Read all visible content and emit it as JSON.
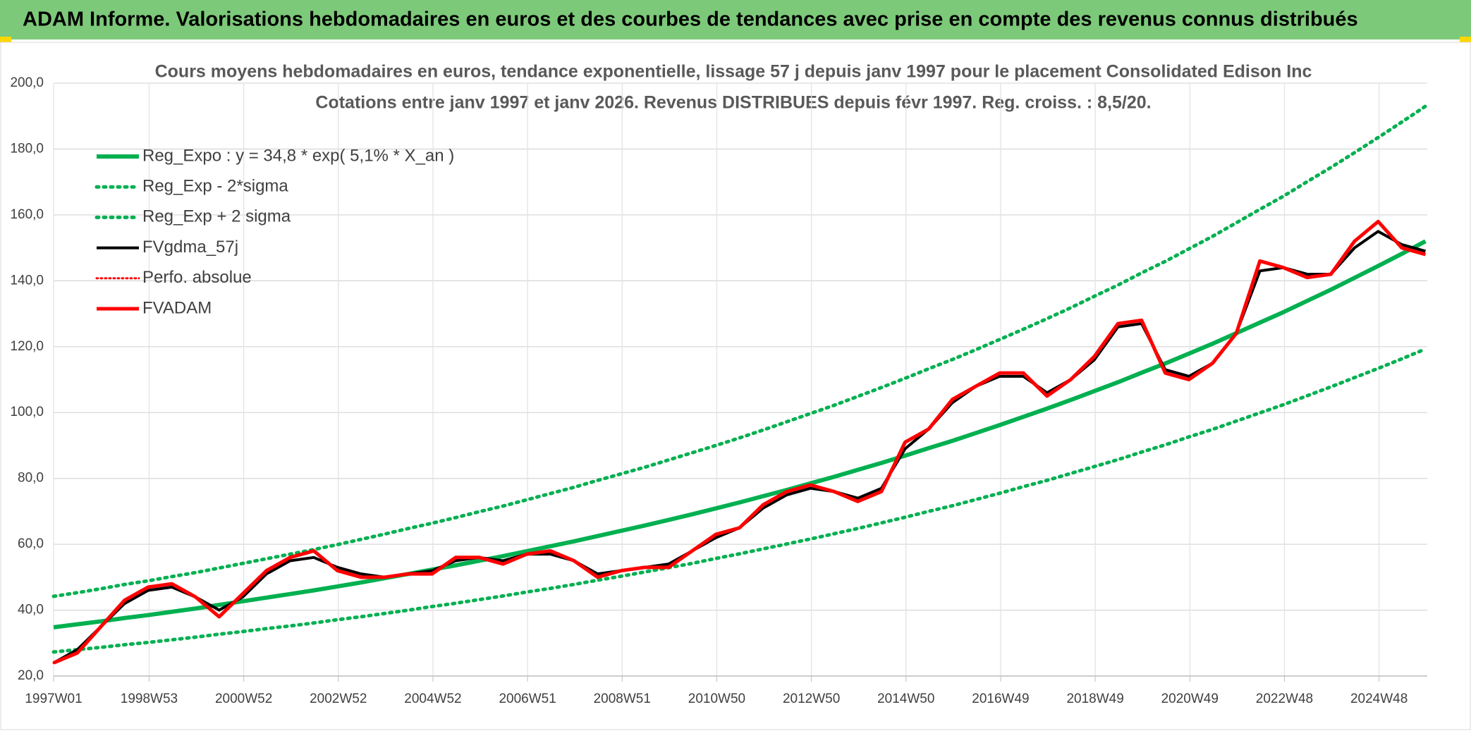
{
  "header": {
    "title": "ADAM Informe. Valorisations hebdomadaires en euros et des courbes de tendances avec prise en compte des revenus connus distribués"
  },
  "chart_data": {
    "type": "line",
    "title": "Cours moyens hebdomadaires en euros, tendance exponentielle, lissage 57 j depuis janv 1997 pour le placement Consolidated Edison Inc",
    "subtitle": "Cotations entre janv 1997 et janv 2026. Revenus DISTRIBUES depuis févr 1997. Reg. croiss. : 8,5/20.",
    "grid": true,
    "legend": "top-left",
    "xlim": [
      0,
      1510
    ],
    "xticks": [
      {
        "value": 0,
        "label": "1997W01"
      },
      {
        "value": 105,
        "label": "1998W53"
      },
      {
        "value": 209,
        "label": "2000W52"
      },
      {
        "value": 313,
        "label": "2002W52"
      },
      {
        "value": 417,
        "label": "2004W52"
      },
      {
        "value": 521,
        "label": "2006W51"
      },
      {
        "value": 625,
        "label": "2008W51"
      },
      {
        "value": 729,
        "label": "2010W50"
      },
      {
        "value": 833,
        "label": "2012W50"
      },
      {
        "value": 937,
        "label": "2014W50"
      },
      {
        "value": 1041,
        "label": "2016W49"
      },
      {
        "value": 1145,
        "label": "2018W49"
      },
      {
        "value": 1249,
        "label": "2020W49"
      },
      {
        "value": 1353,
        "label": "2022W48"
      },
      {
        "value": 1457,
        "label": "2024W48"
      }
    ],
    "ylim": [
      20,
      200
    ],
    "yticks": [
      {
        "value": 20,
        "label": "20,0"
      },
      {
        "value": 40,
        "label": "40,0"
      },
      {
        "value": 60,
        "label": "60,0"
      },
      {
        "value": 80,
        "label": "80,0"
      },
      {
        "value": 100,
        "label": "100,0"
      },
      {
        "value": 120,
        "label": "120,0"
      },
      {
        "value": 140,
        "label": "140,0"
      },
      {
        "value": 160,
        "label": "160,0"
      },
      {
        "value": 180,
        "label": "180,0"
      },
      {
        "value": 200,
        "label": "200,0"
      }
    ],
    "x": [
      0,
      26,
      52,
      78,
      104,
      130,
      156,
      182,
      208,
      234,
      260,
      286,
      312,
      338,
      364,
      390,
      416,
      442,
      468,
      494,
      520,
      546,
      572,
      598,
      624,
      650,
      676,
      702,
      728,
      754,
      780,
      806,
      832,
      858,
      884,
      910,
      936,
      962,
      988,
      1014,
      1040,
      1066,
      1092,
      1118,
      1144,
      1170,
      1196,
      1222,
      1248,
      1274,
      1300,
      1326,
      1352,
      1378,
      1404,
      1430,
      1456,
      1482,
      1508
    ],
    "series": [
      {
        "name": "Reg_Expo : y = 34,8 * exp( 5,1% *  X_an )",
        "color": "#00b050",
        "style": "solid",
        "width": 6,
        "values": [
          34.8,
          35.7,
          36.6,
          37.6,
          38.5,
          39.5,
          40.5,
          41.6,
          42.7,
          43.8,
          44.9,
          46.0,
          47.2,
          48.4,
          49.7,
          51.0,
          52.3,
          53.6,
          55.0,
          56.4,
          57.9,
          59.4,
          60.9,
          62.5,
          64.1,
          65.7,
          67.4,
          69.1,
          70.9,
          72.7,
          74.6,
          76.5,
          78.5,
          80.5,
          82.6,
          84.7,
          86.9,
          89.2,
          91.4,
          93.8,
          96.2,
          98.7,
          101.2,
          103.8,
          106.5,
          109.2,
          112.1,
          114.9,
          117.9,
          120.9,
          124.1,
          127.3,
          130.5,
          133.9,
          137.3,
          140.9,
          144.5,
          148.2,
          152.0
        ]
      },
      {
        "name": "Reg_Exp - 2*sigma",
        "color": "#00b050",
        "style": "dotted",
        "width": 5,
        "values": [
          27.3,
          28.0,
          28.7,
          29.5,
          30.2,
          31.0,
          31.8,
          32.7,
          33.5,
          34.4,
          35.2,
          36.1,
          37.1,
          38.0,
          39.0,
          40.0,
          41.1,
          42.1,
          43.2,
          44.3,
          45.5,
          46.6,
          47.8,
          49.1,
          50.3,
          51.6,
          52.9,
          54.2,
          55.7,
          57.1,
          58.6,
          60.1,
          61.6,
          63.2,
          64.8,
          66.5,
          68.2,
          70.0,
          71.7,
          73.6,
          75.5,
          77.5,
          79.4,
          81.5,
          83.6,
          85.7,
          88.0,
          90.2,
          92.6,
          94.9,
          97.4,
          99.9,
          102.4,
          105.1,
          107.8,
          110.6,
          113.4,
          116.3,
          119.3
        ]
      },
      {
        "name": "Reg_Exp + 2 sigma",
        "color": "#00b050",
        "style": "dotted",
        "width": 5,
        "values": [
          44.2,
          45.3,
          46.5,
          47.8,
          48.9,
          50.2,
          51.4,
          52.8,
          54.2,
          55.6,
          57.0,
          58.4,
          59.9,
          61.5,
          63.1,
          64.8,
          66.4,
          68.1,
          69.9,
          71.6,
          73.5,
          75.4,
          77.3,
          79.4,
          81.4,
          83.4,
          85.6,
          87.8,
          90.0,
          92.3,
          94.7,
          97.2,
          99.7,
          102.2,
          104.9,
          107.6,
          110.4,
          113.3,
          116.1,
          119.1,
          122.2,
          125.3,
          128.5,
          131.8,
          135.3,
          138.7,
          142.4,
          145.9,
          149.7,
          153.5,
          157.6,
          161.7,
          165.7,
          170.1,
          174.4,
          178.9,
          183.5,
          188.2,
          193.0
        ]
      },
      {
        "name": "FVgdma_57j",
        "color": "#000000",
        "style": "solid",
        "width": 4,
        "values": [
          24,
          28,
          35,
          42,
          46,
          47,
          44,
          40,
          44,
          51,
          55,
          56,
          53,
          51,
          50,
          51,
          52,
          55,
          56,
          55,
          57,
          57,
          55,
          51,
          52,
          53,
          54,
          58,
          62,
          65,
          71,
          75,
          77,
          76,
          74,
          77,
          89,
          95,
          103,
          108,
          111,
          111,
          106,
          110,
          116,
          126,
          127,
          113,
          111,
          115,
          124,
          143,
          144,
          142,
          142,
          150,
          155,
          151,
          149
        ]
      },
      {
        "name": "Perfo. absolue",
        "color": "#ff0000",
        "style": "dotted",
        "width": 3,
        "values": [
          24,
          27,
          35,
          43,
          47,
          48,
          44,
          38,
          45,
          52,
          56,
          58,
          52,
          50,
          50,
          51,
          51,
          56,
          56,
          54,
          57,
          58,
          55,
          50,
          52,
          53,
          53,
          58,
          63,
          65,
          72,
          76,
          78,
          76,
          73,
          76,
          91,
          95,
          104,
          108,
          112,
          112,
          105,
          110,
          117,
          127,
          128,
          112,
          110,
          115,
          124,
          146,
          144,
          141,
          142,
          152,
          158,
          150,
          148
        ]
      },
      {
        "name": "FVADAM",
        "color": "#ff0000",
        "style": "solid",
        "width": 5,
        "values": [
          24,
          27,
          35,
          43,
          47,
          48,
          44,
          38,
          45,
          52,
          56,
          58,
          52,
          50,
          50,
          51,
          51,
          56,
          56,
          54,
          57,
          58,
          55,
          50,
          52,
          53,
          53,
          58,
          63,
          65,
          72,
          76,
          78,
          76,
          73,
          76,
          91,
          95,
          104,
          108,
          112,
          112,
          105,
          110,
          117,
          127,
          128,
          112,
          110,
          115,
          124,
          146,
          144,
          141,
          142,
          152,
          158,
          150,
          148
        ]
      }
    ]
  }
}
